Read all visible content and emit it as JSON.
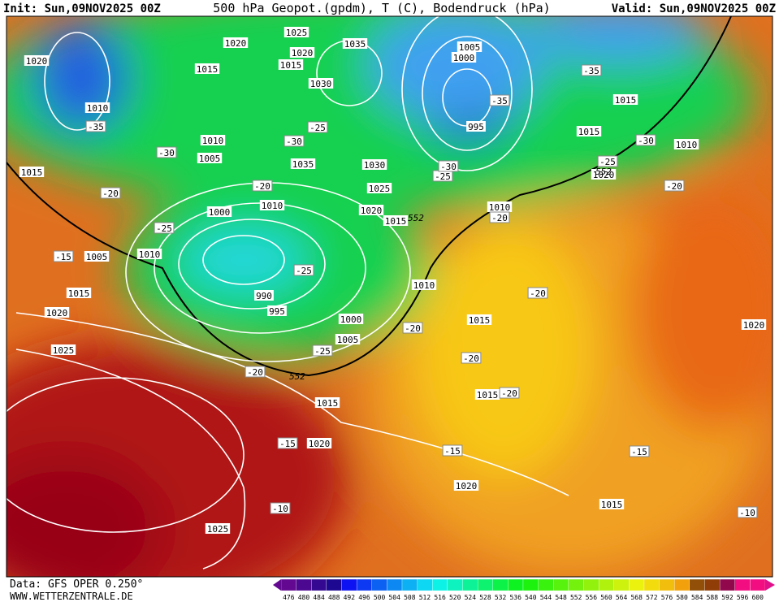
{
  "header": {
    "init": "Init: Sun,09NOV2025 00Z",
    "title": "500 hPa Geopot.(gpdm), T (C), Bodendruck (hPa)",
    "valid": "Valid: Sun,09NOV2025 00Z"
  },
  "footer": {
    "data": "Data: GFS OPER 0.250°",
    "site": "WWW.WETTERZENTRALE.DE"
  },
  "colorbar": {
    "labels": [
      "476",
      "480",
      "484",
      "488",
      "492",
      "496",
      "500",
      "504",
      "508",
      "512",
      "516",
      "520",
      "524",
      "528",
      "532",
      "536",
      "540",
      "544",
      "548",
      "552",
      "556",
      "560",
      "564",
      "568",
      "572",
      "576",
      "580",
      "584",
      "588",
      "592",
      "596",
      "600"
    ]
  },
  "pressure_labels": [
    "1020",
    "1015",
    "1020",
    "1025",
    "1020",
    "1015",
    "1035",
    "1030",
    "1010",
    "1010",
    "1005",
    "1035",
    "1030",
    "1025",
    "1015",
    "1010",
    "1000",
    "1020",
    "1015",
    "1005",
    "1010",
    "990",
    "995",
    "1000",
    "1005",
    "1010",
    "1015",
    "1020",
    "1025",
    "1015",
    "1020",
    "1015",
    "1020",
    "1015",
    "1025",
    "1005",
    "1000",
    "995",
    "1010",
    "1015",
    "1015",
    "1015",
    "1020",
    "1010",
    "1020"
  ],
  "temperature_labels": [
    "-35",
    "-30",
    "-25",
    "-30",
    "-20",
    "-20",
    "-25",
    "-15",
    "-25",
    "-25",
    "-20",
    "-20",
    "-25",
    "-30",
    "-35",
    "-35",
    "-30",
    "-25",
    "-20",
    "-20",
    "-20",
    "-20",
    "-20",
    "-15",
    "-15",
    "-15",
    "-10",
    "-10"
  ],
  "geopotential_labels": [
    "552",
    "552",
    "552"
  ]
}
